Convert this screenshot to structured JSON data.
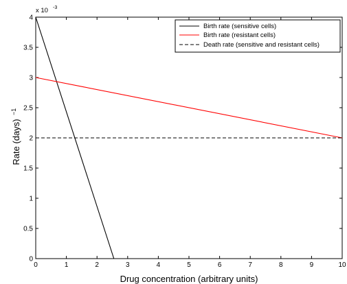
{
  "chart_data": {
    "type": "line",
    "title": "",
    "xlabel": "Drug concentration (arbitrary units)",
    "ylabel": "Rate (days)",
    "ylabel_superscript": "−1",
    "y_multiplier": "x 10",
    "y_multiplier_exponent": "-3",
    "xlim": [
      0,
      10
    ],
    "ylim": [
      0,
      4
    ],
    "xticks": [
      0,
      1,
      2,
      3,
      4,
      5,
      6,
      7,
      8,
      9,
      10
    ],
    "yticks": [
      0,
      0.5,
      1,
      1.5,
      2,
      2.5,
      3,
      3.5,
      4
    ],
    "ytick_labels": [
      "0",
      "0.5",
      "1",
      "1.5",
      "2",
      "2.5",
      "3",
      "3.5",
      "4"
    ],
    "grid": false,
    "legend_position": "top-right",
    "series": [
      {
        "name": "Birth rate (sensitive cells)",
        "color": "#000000",
        "style": "solid",
        "x": [
          0,
          2.55
        ],
        "y": [
          4,
          0
        ]
      },
      {
        "name": "Birth rate (resistant cells)",
        "color": "#ff0000",
        "style": "solid",
        "x": [
          0,
          10
        ],
        "y": [
          3,
          2
        ]
      },
      {
        "name": "Death rate (sensitive and resistant cells)",
        "color": "#000000",
        "style": "dashed",
        "x": [
          0,
          10
        ],
        "y": [
          2,
          2
        ]
      }
    ]
  }
}
